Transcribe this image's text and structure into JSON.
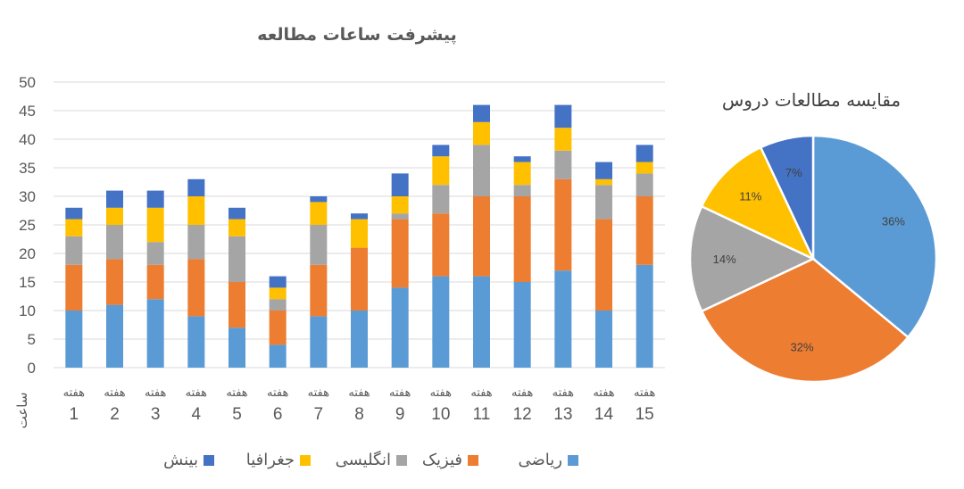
{
  "chart_data": [
    {
      "type": "bar",
      "stacked": true,
      "title": "پیشرفت ساعات مطالعه",
      "ylabel": "ساعت",
      "ylim": [
        0,
        50
      ],
      "yticks": [
        0,
        5,
        10,
        15,
        20,
        25,
        30,
        35,
        40,
        45,
        50
      ],
      "grid": true,
      "legend_position": "bottom",
      "categories": [
        "هفته 1",
        "هفته 2",
        "هفته 3",
        "هفته 4",
        "هفته 5",
        "هفته 6",
        "هفته 7",
        "هفته 8",
        "هفته 9",
        "هفته 10",
        "هفته 11",
        "هفته 12",
        "هفته 13",
        "هفته 14",
        "هفته 15"
      ],
      "category_word": "هفته",
      "category_numbers": [
        "1",
        "2",
        "3",
        "4",
        "5",
        "6",
        "7",
        "8",
        "9",
        "10",
        "11",
        "12",
        "13",
        "14",
        "15"
      ],
      "series": [
        {
          "name": "ریاضی",
          "color": "#5B9BD5",
          "values": [
            10,
            11,
            12,
            9,
            7,
            4,
            9,
            10,
            14,
            16,
            16,
            15,
            17,
            10,
            18
          ]
        },
        {
          "name": "فیزیک",
          "color": "#ED7D31",
          "values": [
            8,
            8,
            6,
            10,
            8,
            6,
            9,
            11,
            12,
            11,
            14,
            15,
            16,
            16,
            12
          ]
        },
        {
          "name": "انگلیسی",
          "color": "#A5A5A5",
          "values": [
            5,
            6,
            4,
            6,
            8,
            2,
            7,
            0,
            1,
            5,
            9,
            2,
            5,
            6,
            4
          ]
        },
        {
          "name": "جغرافیا",
          "color": "#FFC000",
          "values": [
            3,
            3,
            6,
            5,
            3,
            2,
            4,
            5,
            3,
            5,
            4,
            4,
            4,
            1,
            2
          ]
        },
        {
          "name": "بینش",
          "color": "#4472C4",
          "values": [
            2,
            3,
            3,
            3,
            2,
            2,
            1,
            1,
            4,
            2,
            3,
            1,
            4,
            3,
            3
          ]
        }
      ]
    },
    {
      "type": "pie",
      "title": "مقایسه مطالعات دروس",
      "slices": [
        {
          "name": "ریاضی",
          "value": 36,
          "label": "36%",
          "color": "#5B9BD5"
        },
        {
          "name": "فیزیک",
          "value": 32,
          "label": "32%",
          "color": "#ED7D31"
        },
        {
          "name": "انگلیسی",
          "value": 14,
          "label": "14%",
          "color": "#A5A5A5"
        },
        {
          "name": "جغرافیا",
          "value": 11,
          "label": "11%",
          "color": "#FFC000"
        },
        {
          "name": "بینش",
          "value": 7,
          "label": "7%",
          "color": "#4472C4"
        }
      ]
    }
  ]
}
